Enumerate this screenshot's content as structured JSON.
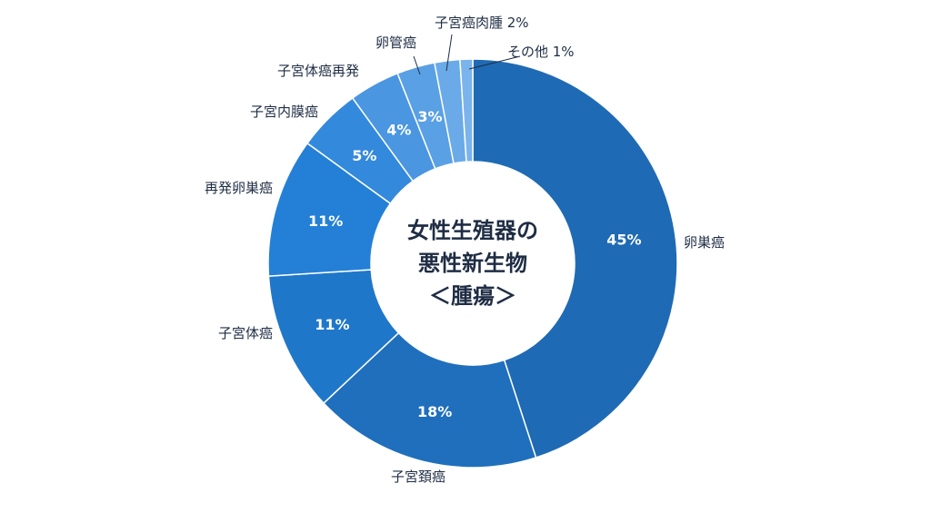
{
  "chart_data": {
    "type": "pie",
    "variant": "donut",
    "title_lines": [
      "女性生殖器の",
      "悪性新生物",
      "＜腫瘍＞"
    ],
    "slices": [
      {
        "label": "卵巣癌",
        "value": 45,
        "value_label": "45%",
        "color": "#1f6ab4"
      },
      {
        "label": "子宮頚癌",
        "value": 18,
        "value_label": "18%",
        "color": "#1f6fbd"
      },
      {
        "label": "子宮体癌",
        "value": 11,
        "value_label": "11%",
        "color": "#1f77c9"
      },
      {
        "label": "再発卵巣癌",
        "value": 11,
        "value_label": "11%",
        "color": "#2480d6"
      },
      {
        "label": "子宮内膜癌",
        "value": 5,
        "value_label": "5%",
        "color": "#3389dc"
      },
      {
        "label": "子宮体癌再発",
        "value": 4,
        "value_label": "4%",
        "color": "#4a96e0"
      },
      {
        "label": "卵管癌",
        "value": 3,
        "value_label": "3%",
        "color": "#5aa0e4"
      },
      {
        "label": "子宮癌肉腫 2%",
        "value": 2,
        "value_label": "",
        "color": "#6aaae8"
      },
      {
        "label": "その他 1%",
        "value": 1,
        "value_label": "",
        "color": "#7bb4ec"
      }
    ],
    "legend": "none"
  }
}
